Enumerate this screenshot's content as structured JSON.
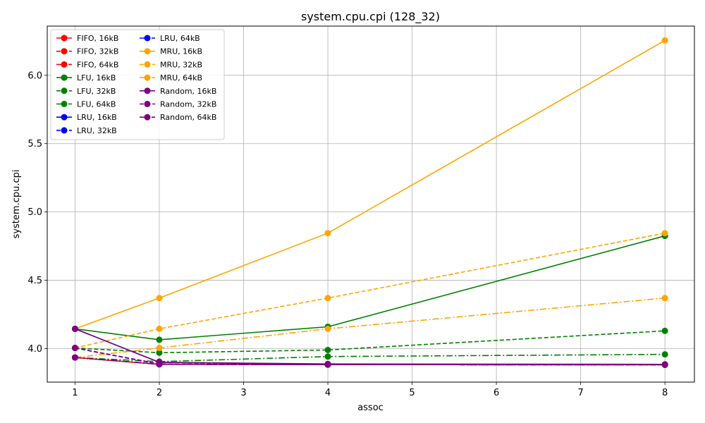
{
  "chart_data": {
    "type": "line",
    "title": "system.cpu.cpi (128_32)",
    "xlabel": "assoc",
    "ylabel": "system.cpu.cpi",
    "x": [
      1,
      2,
      4,
      8
    ],
    "xlim": [
      0.67,
      8.35
    ],
    "ylim": [
      3.755,
      6.36
    ],
    "xticks": [
      1,
      2,
      3,
      4,
      5,
      6,
      7,
      8
    ],
    "yticks": [
      4.0,
      4.5,
      5.0,
      5.5,
      6.0
    ],
    "ytick_labels": [
      "4.0",
      "4.5",
      "5.0",
      "5.5",
      "6.0"
    ],
    "grid": true,
    "legend_position": "upper-left",
    "legend_columns": 2,
    "series": [
      {
        "name": "FIFO, 16kB",
        "color": "#ff0000",
        "linestyle": "solid",
        "values": [
          3.935,
          3.885,
          3.883,
          3.882
        ]
      },
      {
        "name": "FIFO, 32kB",
        "color": "#ff0000",
        "linestyle": "dashed",
        "values": [
          4.005,
          3.886,
          3.883,
          3.882
        ]
      },
      {
        "name": "FIFO, 64kB",
        "color": "#ff0000",
        "linestyle": "dashdot",
        "values": [
          3.935,
          3.886,
          3.883,
          3.882
        ]
      },
      {
        "name": "LFU, 16kB",
        "color": "#008000",
        "linestyle": "solid",
        "values": [
          4.145,
          4.065,
          4.16,
          4.825
        ]
      },
      {
        "name": "LFU, 32kB",
        "color": "#008000",
        "linestyle": "dashed",
        "values": [
          4.005,
          3.97,
          3.99,
          4.13
        ]
      },
      {
        "name": "LFU, 64kB",
        "color": "#008000",
        "linestyle": "dashdot",
        "values": [
          3.935,
          3.905,
          3.942,
          3.958
        ]
      },
      {
        "name": "LRU, 16kB",
        "color": "#0000ff",
        "linestyle": "solid",
        "values": [
          4.145,
          3.9,
          3.885,
          3.884
        ]
      },
      {
        "name": "LRU, 32kB",
        "color": "#0000ff",
        "linestyle": "dashed",
        "values": [
          4.005,
          3.886,
          3.883,
          3.882
        ]
      },
      {
        "name": "LRU, 64kB",
        "color": "#0000ff",
        "linestyle": "dashdot",
        "values": [
          3.935,
          3.886,
          3.883,
          3.882
        ]
      },
      {
        "name": "MRU, 16kB",
        "color": "#ffa500",
        "linestyle": "solid",
        "values": [
          4.145,
          4.37,
          4.845,
          6.255
        ]
      },
      {
        "name": "MRU, 32kB",
        "color": "#ffa500",
        "linestyle": "dashed",
        "values": [
          4.005,
          4.145,
          4.37,
          4.845
        ]
      },
      {
        "name": "MRU, 64kB",
        "color": "#ffa500",
        "linestyle": "dashdot",
        "values": [
          3.935,
          4.005,
          4.145,
          4.37
        ]
      },
      {
        "name": "Random, 16kB",
        "color": "#800080",
        "linestyle": "solid",
        "values": [
          4.145,
          3.9,
          3.888,
          3.885
        ]
      },
      {
        "name": "Random, 32kB",
        "color": "#800080",
        "linestyle": "dashed",
        "values": [
          4.005,
          3.888,
          3.884,
          3.882
        ]
      },
      {
        "name": "Random, 64kB",
        "color": "#800080",
        "linestyle": "dashdot",
        "values": [
          3.935,
          3.886,
          3.883,
          3.882
        ]
      }
    ]
  }
}
